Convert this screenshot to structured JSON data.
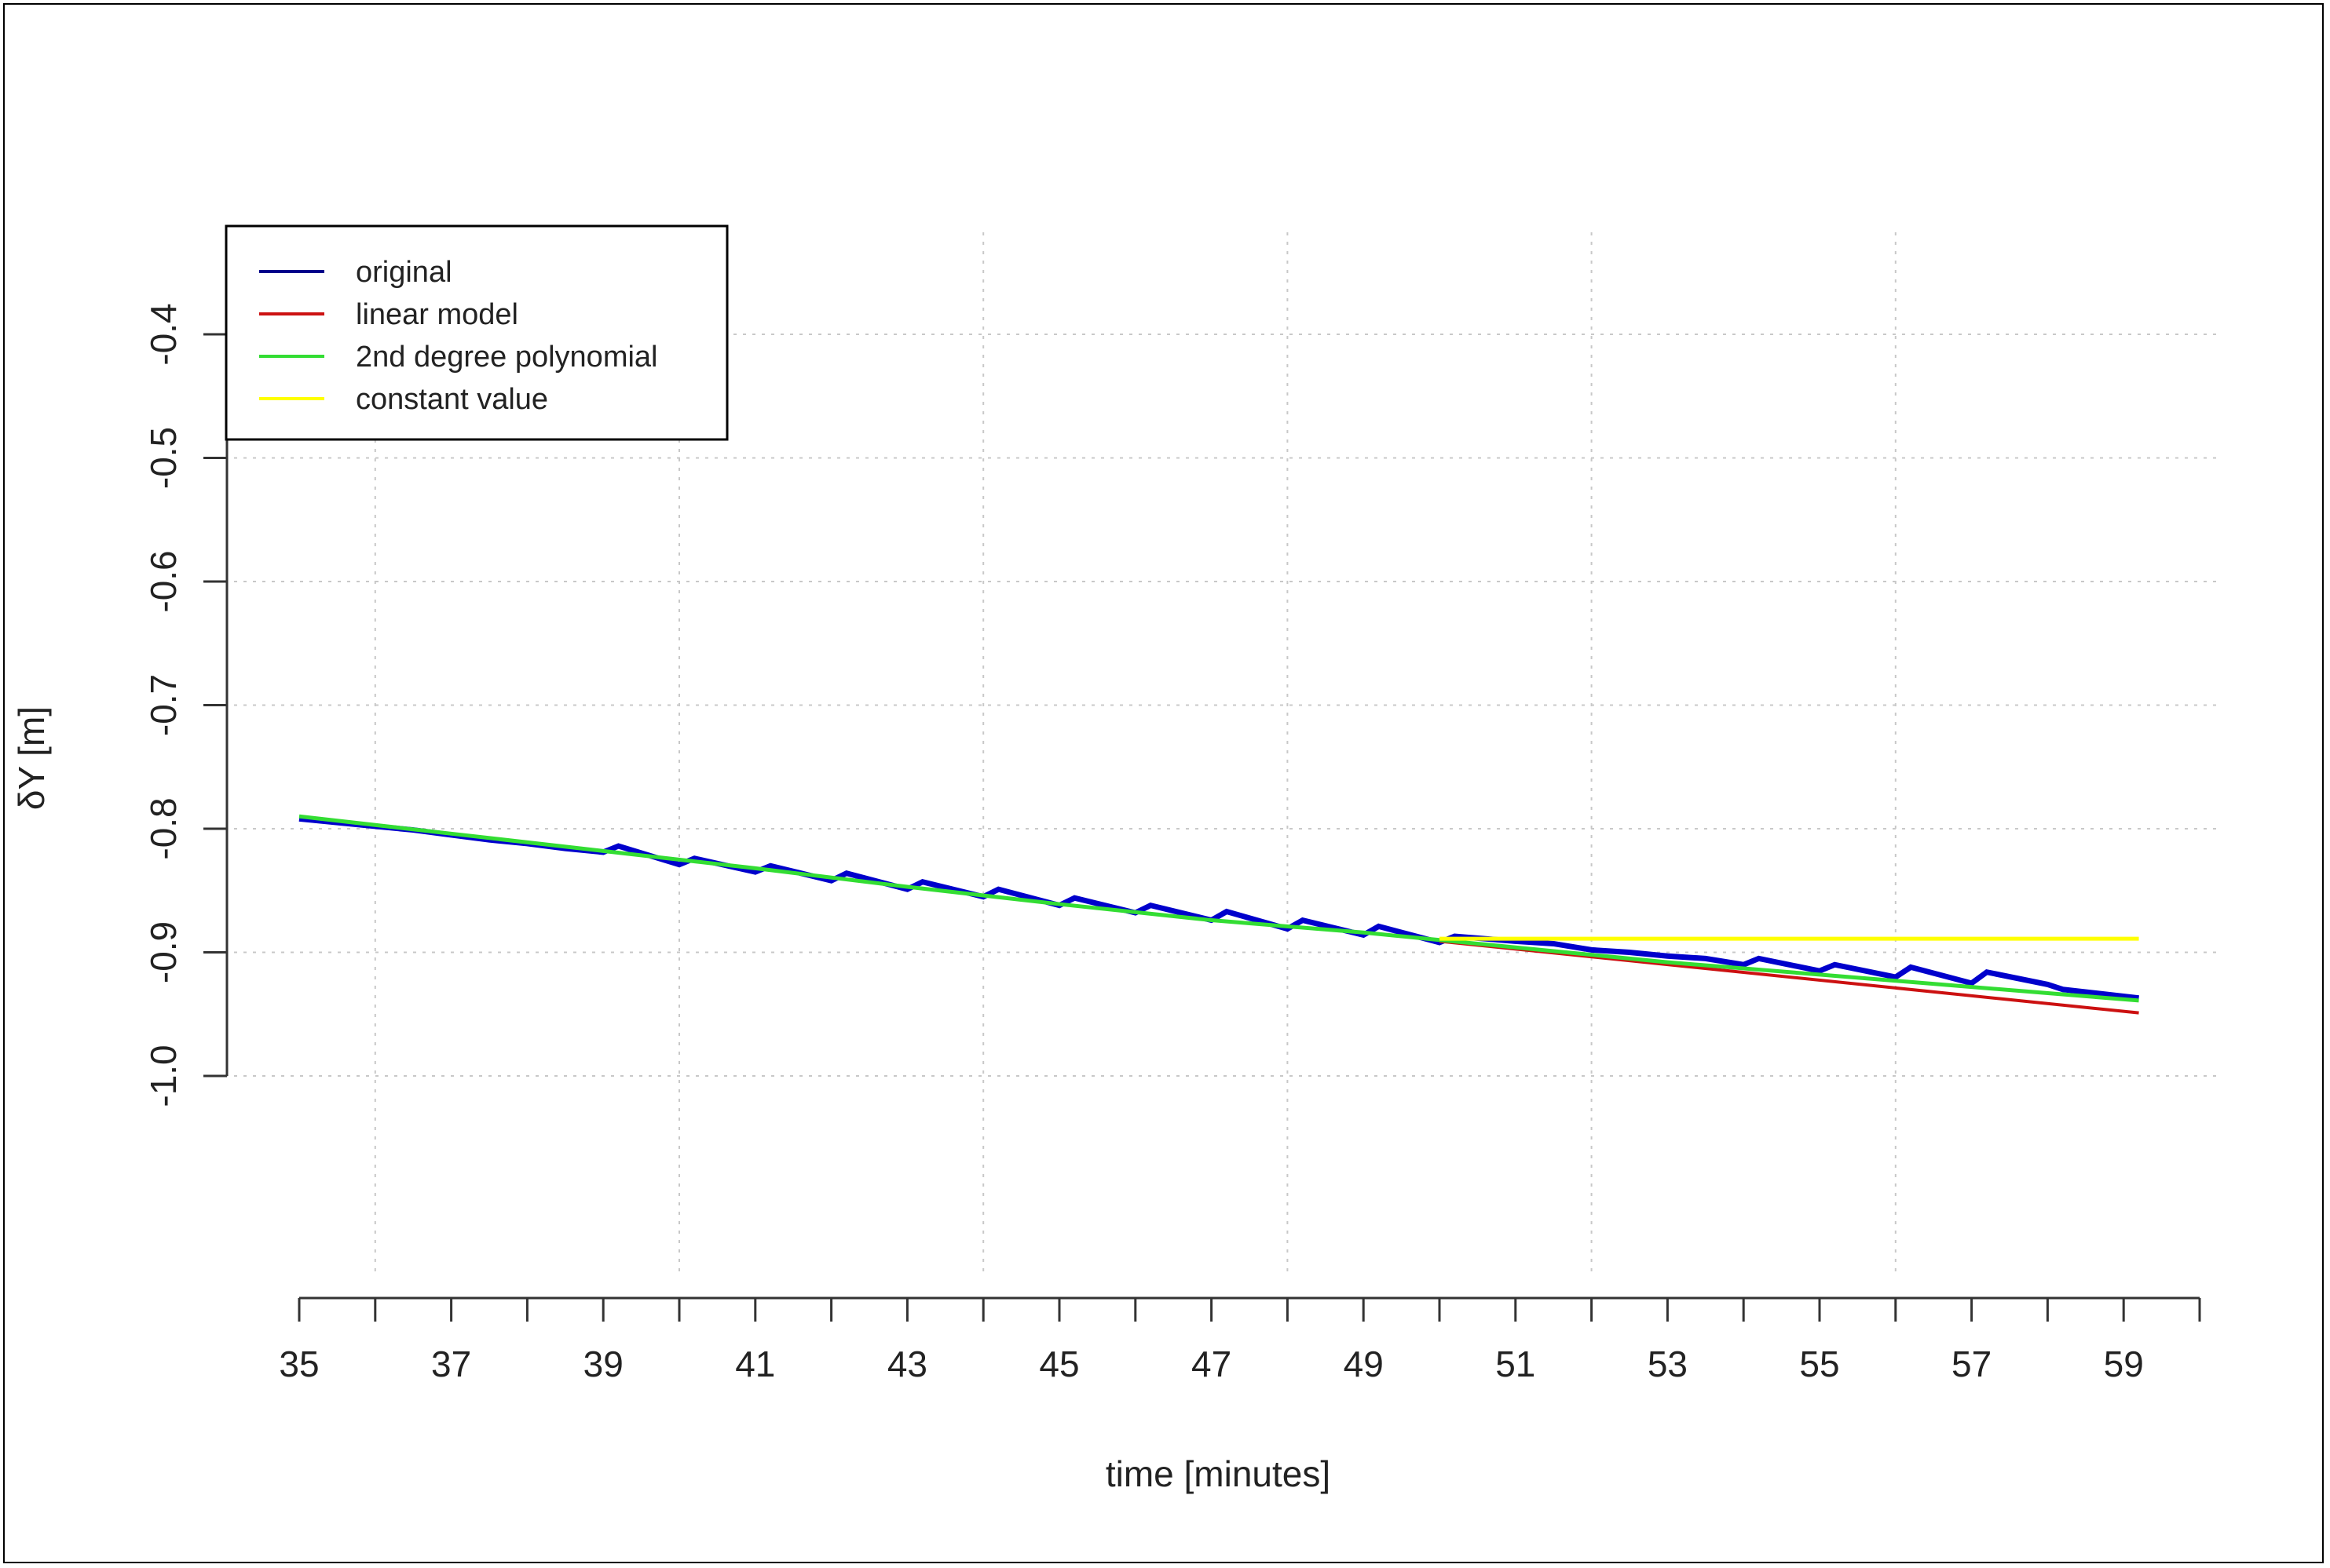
{
  "chart_data": {
    "type": "line",
    "xlabel": "time [minutes]",
    "ylabel": "δY [m]",
    "xlim": [
      35,
      60
    ],
    "ylim": [
      -1.0,
      -0.4
    ],
    "x_ticks": [
      35,
      36,
      37,
      38,
      39,
      40,
      41,
      42,
      43,
      44,
      45,
      46,
      47,
      48,
      49,
      50,
      51,
      52,
      53,
      54,
      55,
      56,
      57,
      58,
      59,
      60
    ],
    "x_tick_labels": [
      35,
      37,
      39,
      41,
      43,
      45,
      47,
      49,
      51,
      53,
      55,
      57,
      59
    ],
    "y_ticks": [
      -1.0,
      -0.9,
      -0.8,
      -0.7,
      -0.6,
      -0.5,
      -0.4
    ],
    "y_tick_labels": [
      "-1.0",
      "-0.9",
      "-0.8",
      "-0.7",
      "-0.6",
      "-0.5",
      "-0.4"
    ],
    "grid": true,
    "grid_x": [
      36,
      40,
      44,
      48,
      52,
      56
    ],
    "legend_position": "top-left",
    "legend": [
      {
        "label": "original",
        "color": "#00008B"
      },
      {
        "label": "linear model",
        "color": "#CC1111"
      },
      {
        "label": "2nd degree polynomial",
        "color": "#33DD33"
      },
      {
        "label": "constant value",
        "color": "#FFFF00"
      }
    ],
    "series": [
      {
        "name": "original",
        "color": "#0000CC",
        "x": [
          35,
          36,
          36.5,
          37,
          37.5,
          38,
          38.5,
          39,
          39.2,
          40,
          40.2,
          41,
          41.2,
          42,
          42.2,
          43,
          43.2,
          44,
          44.2,
          45,
          45.2,
          46,
          46.2,
          47,
          47.2,
          48,
          48.2,
          49,
          49.2,
          50,
          50.2,
          51,
          51.5,
          52,
          52.5,
          53,
          53.5,
          54,
          54.2,
          55,
          55.2,
          56,
          56.2,
          57,
          57.2,
          58,
          58.2,
          59.2
        ],
        "y": [
          -0.792,
          -0.798,
          -0.801,
          -0.805,
          -0.809,
          -0.812,
          -0.816,
          -0.819,
          -0.814,
          -0.829,
          -0.824,
          -0.835,
          -0.83,
          -0.842,
          -0.836,
          -0.849,
          -0.843,
          -0.855,
          -0.849,
          -0.862,
          -0.856,
          -0.868,
          -0.862,
          -0.874,
          -0.867,
          -0.881,
          -0.874,
          -0.886,
          -0.879,
          -0.892,
          -0.887,
          -0.891,
          -0.893,
          -0.898,
          -0.9,
          -0.903,
          -0.905,
          -0.91,
          -0.905,
          -0.915,
          -0.91,
          -0.92,
          -0.912,
          -0.925,
          -0.916,
          -0.926,
          -0.93,
          -0.937
        ]
      },
      {
        "name": "linear model",
        "color": "#CC1111",
        "x": [
          50,
          59.2
        ],
        "y": [
          -0.891,
          -0.949
        ]
      },
      {
        "name": "2nd degree polynomial",
        "color": "#33DD33",
        "x": [
          35,
          37,
          39,
          41,
          43,
          45,
          47,
          49,
          50,
          51,
          53,
          55,
          57,
          59.2
        ],
        "y": [
          -0.79,
          -0.804,
          -0.818,
          -0.832,
          -0.847,
          -0.861,
          -0.874,
          -0.884,
          -0.89,
          -0.896,
          -0.908,
          -0.918,
          -0.928,
          -0.939
        ]
      },
      {
        "name": "constant value",
        "color": "#FFFF00",
        "x": [
          50,
          59.2
        ],
        "y": [
          -0.889,
          -0.889
        ]
      }
    ]
  }
}
